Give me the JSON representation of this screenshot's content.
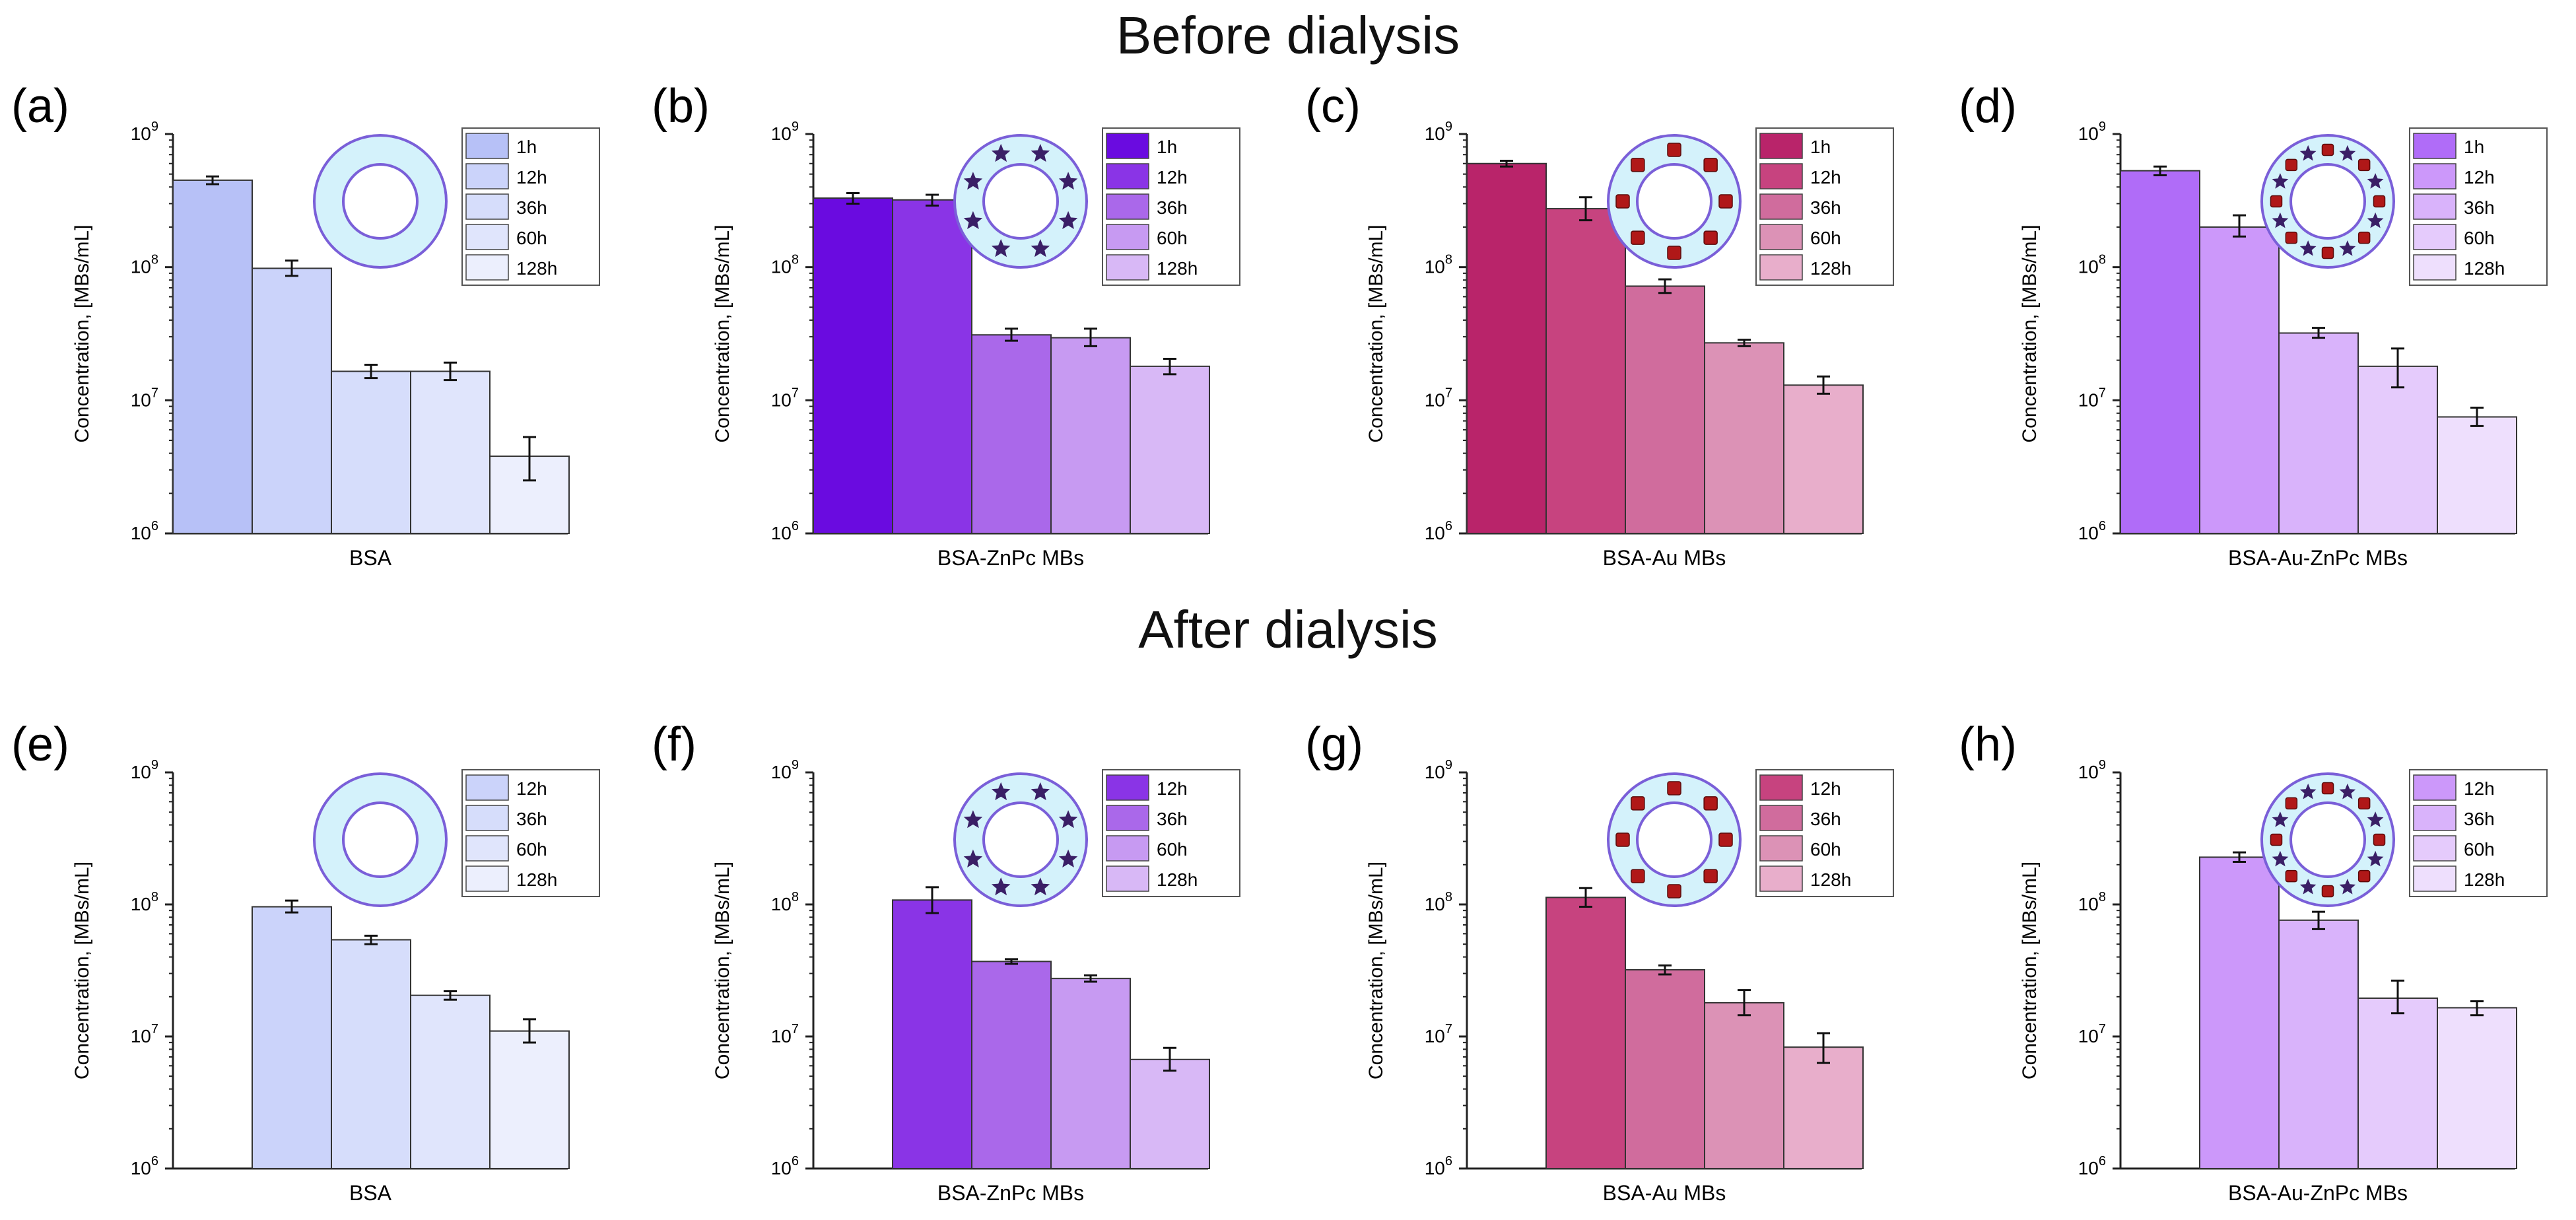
{
  "sections": {
    "before": "Before dialysis",
    "after": "After dialysis"
  },
  "ylabel": "Concentration, [MBs/mL]",
  "colors": {
    "BSA": [
      "#b7c1f7",
      "#cbd3fa",
      "#d6ddfb",
      "#e0e5fc",
      "#eceffd"
    ],
    "BSA-ZnPc MBs": [
      "#6a0be0",
      "#8a34e6",
      "#aa68ea",
      "#c79af2",
      "#d8b8f6"
    ],
    "BSA-Au MBs": [
      "#b9246a",
      "#c7437f",
      "#d06c9d",
      "#dc92b6",
      "#e8aecb"
    ],
    "BSA-Au-ZnPc MBs": [
      "#b06cf8",
      "#cc98fa",
      "#d9b3fb",
      "#e5cbfc",
      "#eedffd"
    ],
    "ring_fill": "#d4f2fb",
    "ring_stroke": "#7a5fd8",
    "star": "#3a1f66",
    "square": "#b01818"
  },
  "chart_data": [
    {
      "panel": "(a)",
      "section": "before",
      "type": "bar",
      "sample": "BSA",
      "xlabel": "BSA",
      "ylabel": "Concentration, [MBs/mL]",
      "yscale": "log",
      "ylim": [
        1000000,
        1000000000
      ],
      "legend": [
        "1h",
        "12h",
        "36h",
        "60h",
        "128h"
      ],
      "values": [
        450000000,
        98000000,
        16500000,
        16500000,
        3800000
      ],
      "errors": [
        [
          420000000,
          480000000
        ],
        [
          86000000,
          112000000
        ],
        [
          14700000,
          18500000
        ],
        [
          14200000,
          19200000
        ],
        [
          2500000,
          5300000
        ]
      ],
      "shell": "plain"
    },
    {
      "panel": "(b)",
      "section": "before",
      "type": "bar",
      "sample": "BSA-ZnPc MBs",
      "xlabel": "BSA-ZnPc MBs",
      "ylabel": "Concentration, [MBs/mL]",
      "yscale": "log",
      "ylim": [
        1000000,
        1000000000
      ],
      "legend": [
        "1h",
        "12h",
        "36h",
        "60h",
        "128h"
      ],
      "values": [
        330000000,
        320000000,
        31000000,
        29500000,
        18000000
      ],
      "errors": [
        [
          300000000,
          360000000
        ],
        [
          290000000,
          350000000
        ],
        [
          28000000,
          34500000
        ],
        [
          25500000,
          34500000
        ],
        [
          15700000,
          20500000
        ]
      ],
      "shell": "stars"
    },
    {
      "panel": "(c)",
      "section": "before",
      "type": "bar",
      "sample": "BSA-Au MBs",
      "xlabel": "BSA-Au MBs",
      "ylabel": "Concentration, [MBs/mL]",
      "yscale": "log",
      "ylim": [
        1000000,
        1000000000
      ],
      "legend": [
        "1h",
        "12h",
        "36h",
        "60h",
        "128h"
      ],
      "values": [
        600000000,
        275000000,
        72000000,
        27000000,
        13000000
      ],
      "errors": [
        [
          570000000,
          630000000
        ],
        [
          225000000,
          335000000
        ],
        [
          64000000,
          81000000
        ],
        [
          25500000,
          28500000
        ],
        [
          11200000,
          15100000
        ]
      ],
      "shell": "squares"
    },
    {
      "panel": "(d)",
      "section": "before",
      "type": "bar",
      "sample": "BSA-Au-ZnPc MBs",
      "xlabel": "BSA-Au-ZnPc MBs",
      "ylabel": "Concentration, [MBs/mL]",
      "yscale": "log",
      "ylim": [
        1000000,
        1000000000
      ],
      "legend": [
        "1h",
        "12h",
        "36h",
        "60h",
        "128h"
      ],
      "values": [
        530000000,
        200000000,
        32000000,
        18000000,
        7500000
      ],
      "errors": [
        [
          490000000,
          570000000
        ],
        [
          170000000,
          245000000
        ],
        [
          29500000,
          35000000
        ],
        [
          12500000,
          24500000
        ],
        [
          6400000,
          8800000
        ]
      ],
      "shell": "both"
    },
    {
      "panel": "(e)",
      "section": "after",
      "type": "bar",
      "sample": "BSA",
      "xlabel": "BSA",
      "ylabel": "Concentration, [MBs/mL]",
      "yscale": "log",
      "ylim": [
        1000000,
        1000000000
      ],
      "legend": [
        "12h",
        "36h",
        "60h",
        "128h"
      ],
      "values": [
        96000000,
        54000000,
        20500000,
        11000000
      ],
      "errors": [
        [
          87000000,
          107000000
        ],
        [
          50000000,
          58000000
        ],
        [
          19000000,
          22000000
        ],
        [
          9000000,
          13500000
        ]
      ],
      "shell": "plain"
    },
    {
      "panel": "(f)",
      "section": "after",
      "type": "bar",
      "sample": "BSA-ZnPc MBs",
      "xlabel": "BSA-ZnPc MBs",
      "ylabel": "Concentration, [MBs/mL]",
      "yscale": "log",
      "ylim": [
        1000000,
        1000000000
      ],
      "legend": [
        "12h",
        "36h",
        "60h",
        "128h"
      ],
      "values": [
        108000000,
        37000000,
        27500000,
        6700000
      ],
      "errors": [
        [
          86000000,
          135000000
        ],
        [
          35500000,
          38500000
        ],
        [
          26000000,
          29000000
        ],
        [
          5500000,
          8200000
        ]
      ],
      "shell": "stars"
    },
    {
      "panel": "(g)",
      "section": "after",
      "type": "bar",
      "sample": "BSA-Au MBs",
      "xlabel": "BSA-Au MBs",
      "ylabel": "Concentration, [MBs/mL]",
      "yscale": "log",
      "ylim": [
        1000000,
        1000000000
      ],
      "legend": [
        "12h",
        "36h",
        "60h",
        "128h"
      ],
      "values": [
        113000000,
        32000000,
        18000000,
        8300000
      ],
      "errors": [
        [
          96000000,
          133000000
        ],
        [
          29500000,
          34500000
        ],
        [
          14500000,
          22500000
        ],
        [
          6300000,
          10600000
        ]
      ],
      "shell": "squares"
    },
    {
      "panel": "(h)",
      "section": "after",
      "type": "bar",
      "sample": "BSA-Au-ZnPc MBs",
      "xlabel": "BSA-Au-ZnPc MBs",
      "ylabel": "Concentration, [MBs/mL]",
      "yscale": "log",
      "ylim": [
        1000000,
        1000000000
      ],
      "legend": [
        "12h",
        "36h",
        "60h",
        "128h"
      ],
      "values": [
        228000000,
        76000000,
        19500000,
        16500000
      ],
      "errors": [
        [
          210000000,
          248000000
        ],
        [
          65000000,
          88000000
        ],
        [
          15000000,
          26500000
        ],
        [
          14500000,
          18500000
        ]
      ],
      "shell": "both"
    }
  ]
}
